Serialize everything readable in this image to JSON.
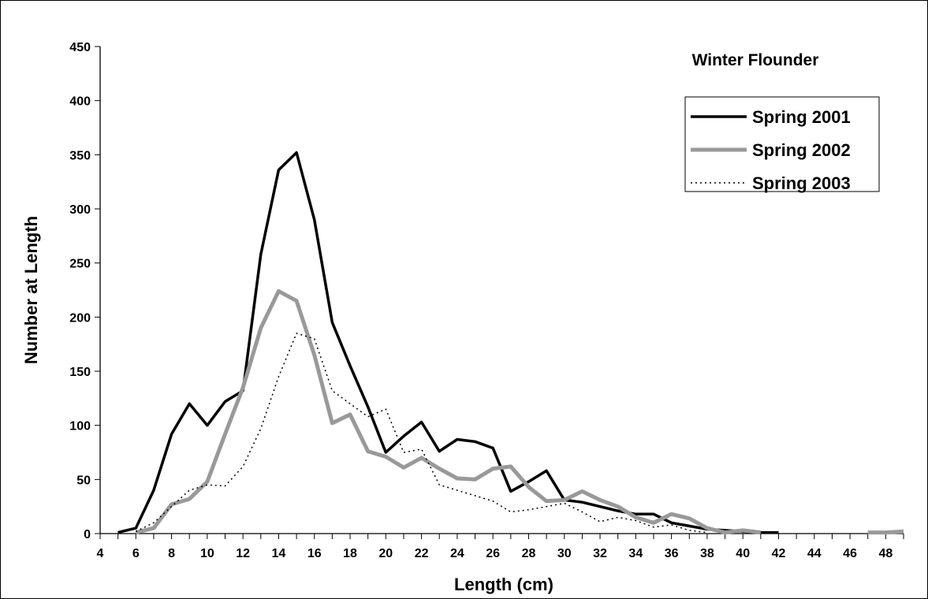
{
  "chart_data": {
    "type": "line",
    "title": "Winter Flounder",
    "xlabel": "Length (cm)",
    "ylabel": "Number at Length",
    "xlim": [
      4,
      49
    ],
    "ylim": [
      0,
      450
    ],
    "xticks": [
      "4",
      "6",
      "8",
      "10",
      "12",
      "14",
      "16",
      "18",
      "20",
      "22",
      "24",
      "26",
      "28",
      "30",
      "32",
      "34",
      "36",
      "38",
      "40",
      "42",
      "44",
      "46",
      "48"
    ],
    "yticks": [
      "0",
      "50",
      "100",
      "150",
      "200",
      "250",
      "300",
      "350",
      "400",
      "450"
    ],
    "legend_position": "top-right",
    "grid": false,
    "series": [
      {
        "name": "Spring 2001",
        "color": "#000000",
        "style": "solid",
        "points": [
          [
            5,
            1
          ],
          [
            6,
            5
          ],
          [
            7,
            40
          ],
          [
            8,
            92
          ],
          [
            9,
            120
          ],
          [
            10,
            100
          ],
          [
            11,
            122
          ],
          [
            12,
            132
          ],
          [
            13,
            258
          ],
          [
            14,
            336
          ],
          [
            15,
            352
          ],
          [
            16,
            290
          ],
          [
            17,
            195
          ],
          [
            18,
            155
          ],
          [
            19,
            117
          ],
          [
            20,
            75
          ],
          [
            21,
            90
          ],
          [
            22,
            103
          ],
          [
            23,
            76
          ],
          [
            24,
            87
          ],
          [
            25,
            85
          ],
          [
            26,
            79
          ],
          [
            27,
            39
          ],
          [
            28,
            48
          ],
          [
            29,
            58
          ],
          [
            30,
            31
          ],
          [
            31,
            29
          ],
          [
            32,
            25
          ],
          [
            33,
            21
          ],
          [
            34,
            18
          ],
          [
            35,
            18
          ],
          [
            36,
            10
          ],
          [
            37,
            7
          ],
          [
            38,
            4
          ],
          [
            39,
            3
          ],
          [
            40,
            2
          ],
          [
            41,
            1
          ],
          [
            42,
            1
          ]
        ]
      },
      {
        "name": "Spring 2002",
        "color": "#999999",
        "style": "solid",
        "points": [
          [
            6,
            1
          ],
          [
            7,
            5
          ],
          [
            8,
            27
          ],
          [
            9,
            32
          ],
          [
            10,
            48
          ],
          [
            11,
            92
          ],
          [
            12,
            135
          ],
          [
            13,
            190
          ],
          [
            14,
            224
          ],
          [
            15,
            215
          ],
          [
            16,
            165
          ],
          [
            17,
            102
          ],
          [
            18,
            110
          ],
          [
            19,
            76
          ],
          [
            20,
            71
          ],
          [
            21,
            61
          ],
          [
            22,
            70
          ],
          [
            23,
            60
          ],
          [
            24,
            51
          ],
          [
            25,
            50
          ],
          [
            26,
            60
          ],
          [
            27,
            62
          ],
          [
            28,
            43
          ],
          [
            29,
            30
          ],
          [
            30,
            31
          ],
          [
            31,
            39
          ],
          [
            32,
            31
          ],
          [
            33,
            25
          ],
          [
            34,
            15
          ],
          [
            35,
            10
          ],
          [
            36,
            18
          ],
          [
            37,
            14
          ],
          [
            38,
            5
          ],
          [
            39,
            1
          ],
          [
            40,
            3
          ],
          [
            41,
            1
          ],
          [
            47,
            1
          ],
          [
            48,
            1
          ],
          [
            49,
            2
          ]
        ]
      },
      {
        "name": "Spring 2003",
        "color": "#000000",
        "style": "dotted",
        "points": [
          [
            6,
            2
          ],
          [
            7,
            10
          ],
          [
            8,
            25
          ],
          [
            9,
            40
          ],
          [
            10,
            45
          ],
          [
            11,
            44
          ],
          [
            12,
            62
          ],
          [
            13,
            97
          ],
          [
            14,
            145
          ],
          [
            15,
            185
          ],
          [
            16,
            180
          ],
          [
            17,
            132
          ],
          [
            18,
            120
          ],
          [
            19,
            108
          ],
          [
            20,
            115
          ],
          [
            21,
            75
          ],
          [
            22,
            78
          ],
          [
            23,
            45
          ],
          [
            24,
            40
          ],
          [
            25,
            35
          ],
          [
            26,
            30
          ],
          [
            27,
            20
          ],
          [
            28,
            22
          ],
          [
            29,
            25
          ],
          [
            30,
            28
          ],
          [
            31,
            20
          ],
          [
            32,
            11
          ],
          [
            33,
            15
          ],
          [
            34,
            12
          ],
          [
            35,
            6
          ],
          [
            36,
            8
          ],
          [
            37,
            3
          ],
          [
            38,
            1
          ]
        ]
      }
    ]
  }
}
